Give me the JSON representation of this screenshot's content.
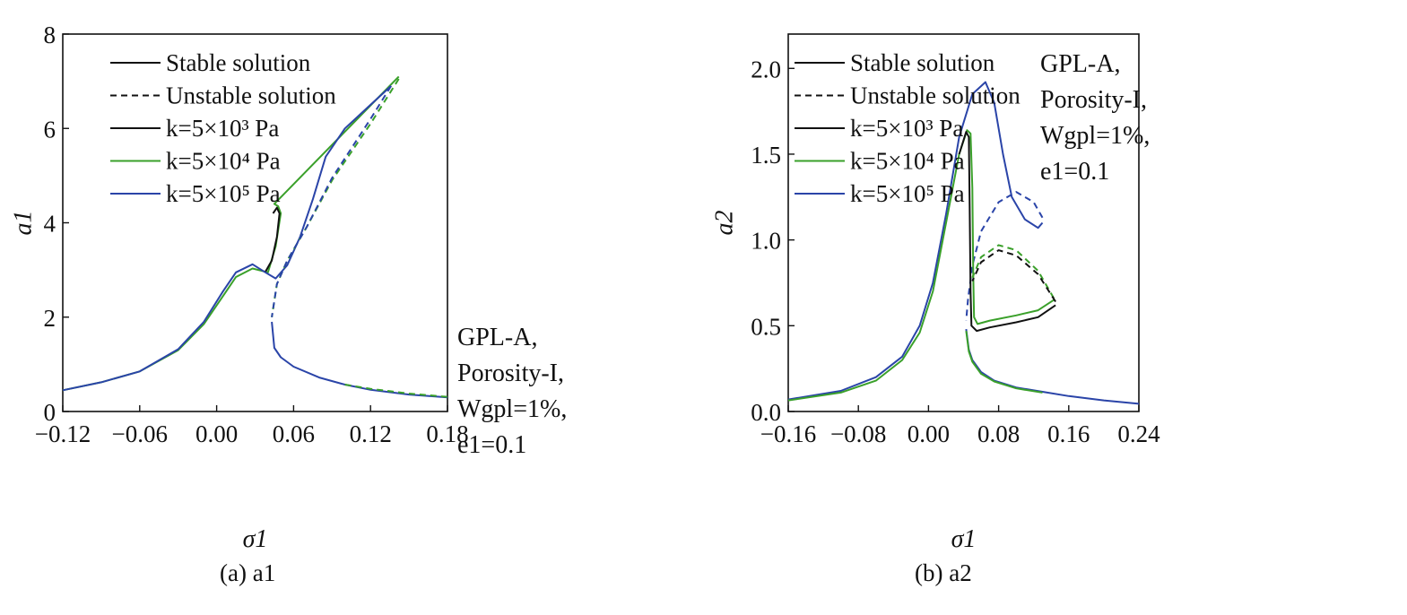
{
  "colors": {
    "k3": "#111111",
    "k4": "#3aa02a",
    "k5": "#2a44a8"
  },
  "chart_data": [
    {
      "type": "line",
      "caption": "(a) a1",
      "xlabel": "σ1",
      "ylabel": "a1",
      "xlim": [
        -0.12,
        0.18
      ],
      "ylim": [
        0,
        8
      ],
      "xticks": [
        "−0.12",
        "−0.06",
        "0.00",
        "0.06",
        "0.12",
        "0.18"
      ],
      "xtick_values": [
        -0.12,
        -0.06,
        0,
        0.06,
        0.12,
        0.18
      ],
      "yticks": [
        "0",
        "2",
        "4",
        "6",
        "8"
      ],
      "ytick_values": [
        0,
        2,
        4,
        6,
        8
      ],
      "legend": [
        "Stable solution",
        "Unstable solution",
        "k=5×10³ Pa",
        "k=5×10⁴ Pa",
        "k=5×10⁵ Pa"
      ],
      "legend_position": "top-left",
      "annotation": [
        "GPL-A,",
        "Porosity-I,",
        "Wgpl=1%,",
        "e1=0.1"
      ],
      "series": [
        {
          "name": "k=5×10⁴ Pa stable",
          "color": "k4",
          "dash": false,
          "points": [
            [
              -0.12,
              0.45
            ],
            [
              -0.09,
              0.62
            ],
            [
              -0.06,
              0.85
            ],
            [
              -0.03,
              1.3
            ],
            [
              -0.01,
              1.85
            ],
            [
              0.005,
              2.45
            ],
            [
              0.015,
              2.85
            ],
            [
              0.028,
              3.03
            ],
            [
              0.04,
              2.95
            ],
            [
              0.046,
              3.5
            ],
            [
              0.05,
              4.2
            ],
            [
              0.048,
              4.35
            ],
            [
              0.045,
              4.4
            ],
            [
              0.142,
              7.1
            ]
          ]
        },
        {
          "name": "k=5×10³ Pa stable",
          "color": "k3",
          "dash": false,
          "points": [
            [
              0.038,
              2.96
            ],
            [
              0.043,
              3.2
            ],
            [
              0.047,
              3.7
            ],
            [
              0.049,
              4.2
            ],
            [
              0.047,
              4.32
            ],
            [
              0.044,
              4.2
            ]
          ]
        },
        {
          "name": "k=5×10⁵ Pa stable",
          "color": "k5",
          "dash": false,
          "points": [
            [
              -0.12,
              0.45
            ],
            [
              -0.09,
              0.62
            ],
            [
              -0.06,
              0.85
            ],
            [
              -0.03,
              1.32
            ],
            [
              -0.01,
              1.9
            ],
            [
              0.005,
              2.55
            ],
            [
              0.015,
              2.95
            ],
            [
              0.028,
              3.12
            ],
            [
              0.038,
              2.95
            ],
            [
              0.046,
              2.82
            ],
            [
              0.055,
              3.1
            ],
            [
              0.065,
              3.7
            ],
            [
              0.075,
              4.5
            ],
            [
              0.085,
              5.4
            ],
            [
              0.1,
              6.0
            ],
            [
              0.12,
              6.5
            ],
            [
              0.136,
              6.9
            ]
          ]
        },
        {
          "name": "unstable (all k)",
          "color": "k4",
          "dash": true,
          "points": [
            [
              0.142,
              7.05
            ],
            [
              0.12,
              6.1
            ],
            [
              0.09,
              4.9
            ],
            [
              0.07,
              3.9
            ],
            [
              0.055,
              3.2
            ],
            [
              0.047,
              2.7
            ],
            [
              0.043,
              2.0
            ]
          ]
        },
        {
          "name": "k=5×10⁵ Pa unstable",
          "color": "k5",
          "dash": true,
          "points": [
            [
              0.136,
              6.9
            ],
            [
              0.12,
              6.2
            ],
            [
              0.09,
              4.95
            ],
            [
              0.07,
              3.9
            ],
            [
              0.055,
              3.2
            ],
            [
              0.047,
              2.7
            ],
            [
              0.043,
              2.0
            ]
          ]
        },
        {
          "name": "lower branch",
          "color": "k5",
          "dash": false,
          "points": [
            [
              0.043,
              1.9
            ],
            [
              0.045,
              1.35
            ],
            [
              0.05,
              1.15
            ],
            [
              0.06,
              0.95
            ],
            [
              0.08,
              0.72
            ],
            [
              0.1,
              0.57
            ],
            [
              0.12,
              0.46
            ],
            [
              0.15,
              0.36
            ],
            [
              0.18,
              0.3
            ]
          ]
        },
        {
          "name": "lower branch k4 unstable tail",
          "color": "k4",
          "dash": true,
          "points": [
            [
              0.1,
              0.57
            ],
            [
              0.12,
              0.48
            ],
            [
              0.15,
              0.38
            ],
            [
              0.18,
              0.31
            ]
          ]
        }
      ]
    },
    {
      "type": "line",
      "caption": "(b) a2",
      "xlabel": "σ1",
      "ylabel": "a2",
      "xlim": [
        -0.16,
        0.24
      ],
      "ylim": [
        0,
        2.2
      ],
      "xticks": [
        "−0.16",
        "−0.08",
        "0.00",
        "0.08",
        "0.16",
        "0.24"
      ],
      "xtick_values": [
        -0.16,
        -0.08,
        0,
        0.08,
        0.16,
        0.24
      ],
      "yticks": [
        "0.0",
        "0.5",
        "1.0",
        "1.5",
        "2.0"
      ],
      "ytick_values": [
        0,
        0.5,
        1,
        1.5,
        2
      ],
      "legend": [
        "Stable solution",
        "Unstable solution",
        "k=5×10³ Pa",
        "k=5×10⁴ Pa",
        "k=5×10⁵ Pa"
      ],
      "legend_position": "top-left",
      "annotation": [
        "GPL-A,",
        "Porosity-I,",
        "Wgpl=1%,",
        "e1=0.1"
      ],
      "series": [
        {
          "name": "k=5×10⁵ Pa stable",
          "color": "k5",
          "dash": false,
          "points": [
            [
              -0.16,
              0.07
            ],
            [
              -0.1,
              0.12
            ],
            [
              -0.06,
              0.2
            ],
            [
              -0.03,
              0.32
            ],
            [
              -0.01,
              0.5
            ],
            [
              0.005,
              0.75
            ],
            [
              0.02,
              1.15
            ],
            [
              0.035,
              1.6
            ],
            [
              0.05,
              1.85
            ],
            [
              0.065,
              1.92
            ],
            [
              0.075,
              1.8
            ],
            [
              0.085,
              1.5
            ],
            [
              0.095,
              1.25
            ],
            [
              0.11,
              1.12
            ],
            [
              0.125,
              1.07
            ],
            [
              0.13,
              1.1
            ]
          ]
        },
        {
          "name": "k=5×10⁵ Pa unstable",
          "color": "k5",
          "dash": true,
          "points": [
            [
              0.13,
              1.13
            ],
            [
              0.12,
              1.22
            ],
            [
              0.1,
              1.28
            ],
            [
              0.08,
              1.22
            ],
            [
              0.06,
              1.05
            ],
            [
              0.05,
              0.85
            ],
            [
              0.045,
              0.65
            ],
            [
              0.043,
              0.53
            ]
          ]
        },
        {
          "name": "k=5×10⁴ Pa stable",
          "color": "k4",
          "dash": false,
          "points": [
            [
              -0.16,
              0.065
            ],
            [
              -0.1,
              0.11
            ],
            [
              -0.06,
              0.18
            ],
            [
              -0.03,
              0.3
            ],
            [
              -0.01,
              0.46
            ],
            [
              0.005,
              0.7
            ],
            [
              0.02,
              1.1
            ],
            [
              0.035,
              1.5
            ],
            [
              0.044,
              1.64
            ],
            [
              0.048,
              1.62
            ],
            [
              0.05,
              1.3
            ],
            [
              0.051,
              0.8
            ],
            [
              0.052,
              0.55
            ],
            [
              0.056,
              0.51
            ],
            [
              0.07,
              0.53
            ],
            [
              0.1,
              0.56
            ],
            [
              0.125,
              0.59
            ],
            [
              0.143,
              0.65
            ]
          ]
        },
        {
          "name": "k=5×10⁴ Pa unstable",
          "color": "k4",
          "dash": true,
          "points": [
            [
              0.143,
              0.66
            ],
            [
              0.125,
              0.82
            ],
            [
              0.1,
              0.94
            ],
            [
              0.08,
              0.97
            ],
            [
              0.06,
              0.9
            ],
            [
              0.05,
              0.78
            ]
          ]
        },
        {
          "name": "k=5×10³ Pa stable",
          "color": "k3",
          "dash": false,
          "points": [
            [
              0.035,
              1.5
            ],
            [
              0.043,
              1.63
            ],
            [
              0.046,
              1.6
            ],
            [
              0.047,
              1.2
            ],
            [
              0.048,
              0.7
            ],
            [
              0.049,
              0.5
            ],
            [
              0.055,
              0.47
            ],
            [
              0.07,
              0.49
            ],
            [
              0.1,
              0.52
            ],
            [
              0.125,
              0.55
            ],
            [
              0.145,
              0.62
            ]
          ]
        },
        {
          "name": "k=5×10³ Pa unstable",
          "color": "k3",
          "dash": true,
          "points": [
            [
              0.145,
              0.64
            ],
            [
              0.125,
              0.8
            ],
            [
              0.1,
              0.91
            ],
            [
              0.08,
              0.94
            ],
            [
              0.06,
              0.87
            ],
            [
              0.05,
              0.76
            ]
          ]
        },
        {
          "name": "lower branch",
          "color": "k5",
          "dash": false,
          "points": [
            [
              0.043,
              0.48
            ],
            [
              0.046,
              0.36
            ],
            [
              0.05,
              0.3
            ],
            [
              0.06,
              0.23
            ],
            [
              0.075,
              0.18
            ],
            [
              0.1,
              0.14
            ],
            [
              0.13,
              0.115
            ],
            [
              0.16,
              0.09
            ],
            [
              0.2,
              0.065
            ],
            [
              0.24,
              0.045
            ]
          ]
        },
        {
          "name": "lower branch k4",
          "color": "k4",
          "dash": false,
          "points": [
            [
              0.043,
              0.47
            ],
            [
              0.046,
              0.35
            ],
            [
              0.05,
              0.29
            ],
            [
              0.06,
              0.22
            ],
            [
              0.075,
              0.175
            ],
            [
              0.1,
              0.135
            ],
            [
              0.13,
              0.11
            ]
          ]
        }
      ]
    }
  ]
}
